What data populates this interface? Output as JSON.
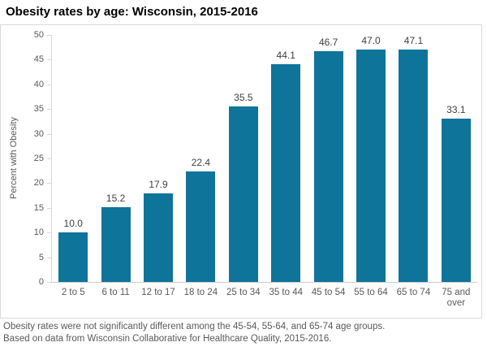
{
  "title": "Obesity rates by age: Wisconsin, 2015-2016",
  "footer": {
    "line1": "Obesity rates were not significantly different among the 45-54, 55-64, and 65-74 age groups.",
    "line2": "Based on data from Wisconsin Collaborative for Healthcare Quality, 2015-2016."
  },
  "chart_data": {
    "type": "bar",
    "title": "Obesity rates by age: Wisconsin, 2015-2016",
    "categories": [
      "2 to 5",
      "6 to 11",
      "12 to 17",
      "18 to 24",
      "25 to 34",
      "35 to 44",
      "45 to 54",
      "55 to 64",
      "65 to 74",
      "75 and over"
    ],
    "values": [
      10.0,
      15.2,
      17.9,
      22.4,
      35.5,
      44.1,
      46.7,
      47.0,
      47.1,
      33.1
    ],
    "value_labels": [
      "10.0",
      "15.2",
      "17.9",
      "22.4",
      "35.5",
      "44.1",
      "46.7",
      "47.0",
      "47.1",
      "33.1"
    ],
    "xlabel": "",
    "ylabel": "Percent with Obesity",
    "ylim": [
      0,
      50
    ],
    "yticks": [
      0,
      5,
      10,
      15,
      20,
      25,
      30,
      35,
      40,
      45,
      50
    ],
    "grid": false,
    "legend": false,
    "colors": {
      "bar": "#0f7499",
      "value_label": "#404040",
      "axis_text": "#595959",
      "axis_line": "#d9d9d9",
      "border": "#d9d9d9",
      "title_text": "#000000"
    }
  }
}
